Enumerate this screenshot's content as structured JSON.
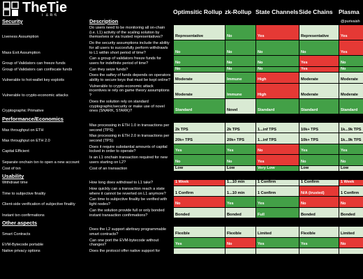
{
  "header": {
    "logo": "TheTie",
    "logo_sub": "LABS",
    "columns": [
      "Optimsitic Rollup",
      "zk-Rollup",
      "State Channels",
      "Side Chains",
      "Plasma"
    ],
    "description_header": "Description",
    "handle": "@purivaish"
  },
  "sections": [
    {
      "title": "Security",
      "rows": [
        {
          "label": "Liveness Assumption",
          "description": "Do users need to be monitoring all on-chain (i.e. L1) activity of the scaling solution by themselves or via trusted representatives?",
          "values": [
            "Representative",
            "No",
            "Yes",
            "Representative",
            "Yes"
          ],
          "colors": [
            "#d9ead3",
            "#43a047",
            "#e53935",
            "#d9ead3",
            "#e53935"
          ]
        },
        {
          "label": "Mass Exit Assumption",
          "description": "Do the security assumptions include the ability for all users to succesfully perform withdrawls to L1 within short period of time?",
          "values": [
            "No",
            "No",
            "No",
            "No",
            "Yes"
          ],
          "colors": [
            "#43a047",
            "#43a047",
            "#43a047",
            "#43a047",
            "#e53935"
          ]
        },
        {
          "label": "Group of Validators can freeze funds",
          "description": "Can a group of validators freeze funds for users for indefinite period of time?",
          "values": [
            "No",
            "No",
            "No",
            "Yes",
            "No"
          ],
          "colors": [
            "#43a047",
            "#43a047",
            "#43a047",
            "#e53935",
            "#43a047"
          ]
        },
        {
          "label": "Group of Validators can confiscate funds",
          "description": "Can they seize funds?",
          "values": [
            "No",
            "No",
            "No",
            "Yes",
            "No"
          ],
          "colors": [
            "#43a047",
            "#43a047",
            "#43a047",
            "#e53935",
            "#43a047"
          ]
        },
        {
          "label": "Vulnerable to hot-wallet key exploits",
          "description": "Does the saftey of funds depends on operators ability to secure keys that must be kept online?",
          "values": [
            "Moderate",
            "Immune",
            "High",
            "Moderate",
            "Moderate"
          ],
          "colors": [
            "#d9ead3",
            "#43a047",
            "#e53935",
            "#d9ead3",
            "#d9ead3"
          ]
        },
        {
          "label": "Vulnerable to crypto-economic attacks",
          "description": "Vulnerable to crypto-economic attack incentives ie rely on game theory assumptions ?",
          "values": [
            "Moderate",
            "Immune",
            "High",
            "Moderate",
            "Moderate"
          ],
          "colors": [
            "#d9ead3",
            "#43a047",
            "#e53935",
            "#d9ead3",
            "#d9ead3"
          ]
        },
        {
          "label": "Cryptographic Primative",
          "description": "Does the solution rely on standard cryptographic/security or make use of novel ones (SNARK, STARK)?",
          "values": [
            "Standard",
            "Novel",
            "Standard",
            "Standard",
            "Standard"
          ],
          "colors": [
            "#43a047",
            "#d9ead3",
            "#43a047",
            "#43a047",
            "#43a047"
          ]
        }
      ]
    },
    {
      "title": "Performance/Economics",
      "rows": [
        {
          "label": "Max throughput on ETH",
          "description": "Max processing in ETH 1.0 in transactions per second (TPS)",
          "values": [
            "2k TPS",
            "2k TPS",
            "1...inf TPS",
            "10k+ TPS",
            "1k...9k TPS"
          ],
          "colors": [
            "#d9ead3",
            "#d9ead3",
            "#d9ead3",
            "#d9ead3",
            "#d9ead3"
          ]
        },
        {
          "label": "Max throughput on ETH 2.0",
          "description": "Max processing in ETH 2.0 in transactions per second (TPS)",
          "values": [
            "20k+ TPS",
            "20k+ TPS",
            "1...inf TPS",
            "10k+ TPS",
            "1k...9k TPS"
          ],
          "colors": [
            "#d9ead3",
            "#d9ead3",
            "#d9ead3",
            "#d9ead3",
            "#d9ead3"
          ]
        },
        {
          "label": "Capital Efficient",
          "description": "Does it require substantial amounts of capital locked in order to operate?",
          "values": [
            "Yes",
            "Yes",
            "No",
            "Yes",
            "Yes"
          ],
          "colors": [
            "#43a047",
            "#43a047",
            "#e53935",
            "#43a047",
            "#43a047"
          ]
        },
        {
          "label": "Separate onchain txn to open a new account",
          "description": "Is an L1 onchain transaction required for new users starting on L2?",
          "values": [
            "No",
            "No",
            "Yes",
            "No",
            "No"
          ],
          "colors": [
            "#43a047",
            "#43a047",
            "#e53935",
            "#43a047",
            "#43a047"
          ]
        },
        {
          "label": "Cost of txn",
          "description": "Cost of an transaction",
          "values": [
            "Low",
            "Low",
            "Very Low",
            "Low",
            "Low"
          ],
          "colors": [
            "#d9ead3",
            "#d9ead3",
            "#43a047",
            "#d9ead3",
            "#d9ead3"
          ]
        }
      ]
    },
    {
      "title": "Usability",
      "rows": [
        {
          "label": "Withdrawl time",
          "description": "How long does withdrawl to L1 take?",
          "values": [
            "1 Week",
            "1...10 min",
            "1 Confirm",
            "1 Confirm",
            "1 Week"
          ],
          "colors": [
            "#e53935",
            "#d9ead3",
            "#d9ead3",
            "#d9ead3",
            "#e53935"
          ]
        },
        {
          "label": "Time to subjective finality",
          "description": "How quickly can a transaction reach a state where it cannot be reverted on L1 anymore?",
          "values": [
            "1 Confirm",
            "1...10 min",
            "1 Confirm",
            "N/A (trusted)",
            "1 Confirm"
          ],
          "colors": [
            "#d9ead3",
            "#d9ead3",
            "#d9ead3",
            "#e53935",
            "#d9ead3"
          ]
        },
        {
          "label": "Client-side verification of subjective finality",
          "description": "Can time to subjective finality be verified with light nodes?",
          "values": [
            "No",
            "Yes",
            "Yes",
            "No",
            "No"
          ],
          "colors": [
            "#e53935",
            "#43a047",
            "#43a047",
            "#e53935",
            "#e53935"
          ]
        },
        {
          "label": "Instant txn confirmations",
          "description": "Can the solution provide full or only bonded instant transaction confirmations?",
          "values": [
            "Bonded",
            "Bonded",
            "Full",
            "Bonded",
            "Bonded"
          ],
          "colors": [
            "#d9ead3",
            "#d9ead3",
            "#43a047",
            "#d9ead3",
            "#d9ead3"
          ]
        }
      ]
    },
    {
      "title": "Other aspects",
      "rows": [
        {
          "label": "Smart Contracts",
          "description": "Does the L2 support abritrary programmable smart contracts?",
          "values": [
            "Flexible",
            "Flexible",
            "Limited",
            "Flexible",
            "Limited"
          ],
          "colors": [
            "#d9ead3",
            "#d9ead3",
            "#d9ead3",
            "#d9ead3",
            "#d9ead3"
          ]
        },
        {
          "label": "EVM-Bytecode portable",
          "description": "Can one port the EVM-bytecode without changes?",
          "values": [
            "Yes",
            "No",
            "Yes",
            "Yes",
            "No"
          ],
          "colors": [
            "#43a047",
            "#e53935",
            "#43a047",
            "#43a047",
            "#e53935"
          ]
        },
        {
          "label": "Native privacy options",
          "description": "Does the protocol offer native support for",
          "values": [
            "",
            "",
            "",
            "",
            ""
          ],
          "colors": [
            "#d9ead3",
            "#d9ead3",
            "#d9ead3",
            "#d9ead3",
            "#d9ead3"
          ]
        }
      ]
    }
  ]
}
